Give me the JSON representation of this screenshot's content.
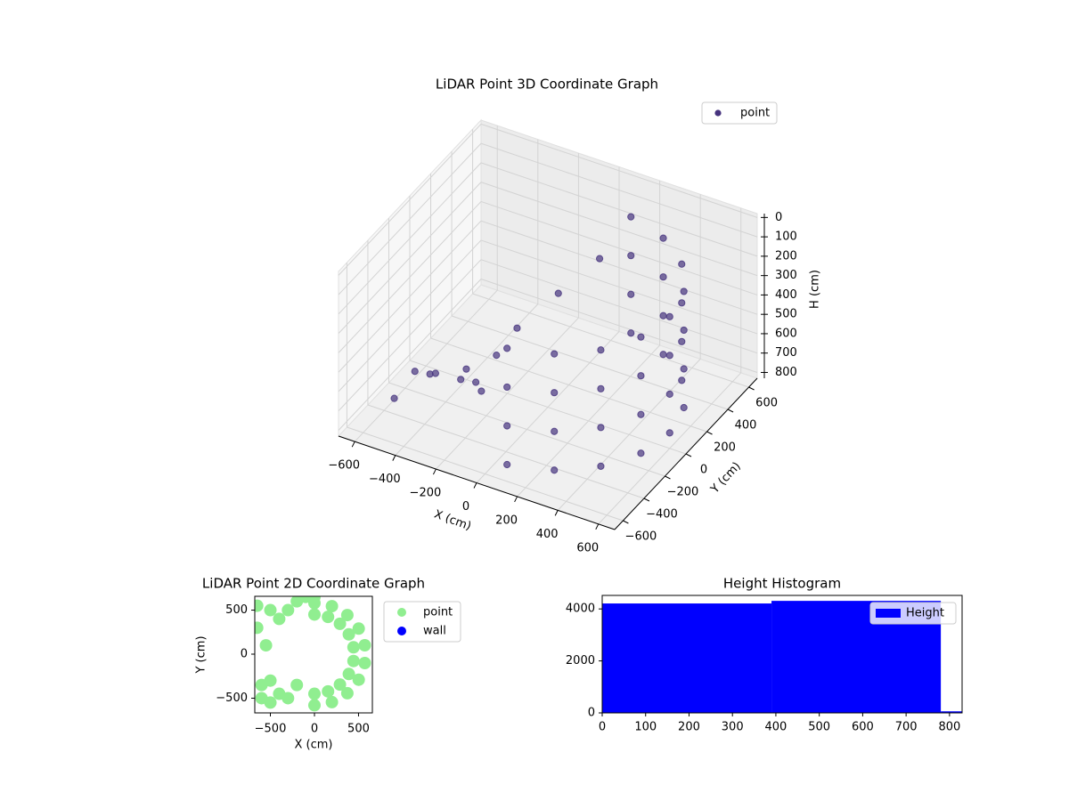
{
  "chart_data": [
    {
      "type": "scatter3d",
      "title": "LiDAR Point 3D Coordinate Graph",
      "x_label": "X (cm)",
      "y_label": "Y (cm)",
      "z_label": "H (cm)",
      "xlim": [
        -680,
        680
      ],
      "ylim": [
        -680,
        680
      ],
      "zlim": [
        830,
        -20
      ],
      "xticks": [
        {
          "value": -600,
          "label": "−600"
        },
        {
          "value": -400,
          "label": "−400"
        },
        {
          "value": -200,
          "label": "−200"
        },
        0,
        200,
        400,
        600
      ],
      "yticks": [
        {
          "value": -600,
          "label": "−600"
        },
        {
          "value": -400,
          "label": "−400"
        },
        {
          "value": -200,
          "label": "−200"
        },
        0,
        200,
        400,
        600
      ],
      "zticks": [
        0,
        100,
        200,
        300,
        400,
        500,
        600,
        700,
        800
      ],
      "grid": true,
      "legend": "upper right",
      "series": [
        {
          "name": "point",
          "color": "#46337e",
          "x": [
            104,
            300,
            460,
            564,
            600,
            564,
            460,
            300,
            104,
            104,
            300,
            460,
            564,
            600,
            564,
            460,
            300,
            104,
            104,
            300,
            460,
            564,
            600,
            564,
            460,
            300,
            104,
            104,
            300,
            460,
            564,
            600,
            564,
            460,
            300,
            104,
            -500,
            -450,
            -400,
            -300,
            -350,
            -200,
            -250,
            -550,
            -150,
            -100,
            0,
            100
          ],
          "y": [
            -591,
            -520,
            -386,
            -205,
            0,
            205,
            386,
            520,
            591,
            -591,
            -520,
            -386,
            -205,
            0,
            205,
            386,
            520,
            591,
            -591,
            -520,
            -386,
            -205,
            0,
            205,
            386,
            520,
            591,
            -591,
            -520,
            -386,
            -205,
            0,
            205,
            386,
            520,
            591,
            -300,
            -200,
            -350,
            -250,
            -100,
            -300,
            -150,
            -400,
            -200,
            -100,
            100,
            300
          ],
          "z": [
            150,
            150,
            150,
            150,
            150,
            150,
            150,
            150,
            150,
            350,
            350,
            350,
            350,
            350,
            350,
            350,
            350,
            350,
            550,
            550,
            550,
            550,
            550,
            550,
            550,
            550,
            550,
            750,
            750,
            750,
            750,
            750,
            750,
            750,
            750,
            750,
            650,
            700,
            600,
            650,
            700,
            600,
            750,
            750,
            500,
            400,
            300,
            200
          ]
        }
      ]
    },
    {
      "type": "scatter",
      "title": "LiDAR Point 2D Coordinate Graph",
      "x_label": "X (cm)",
      "y_label": "Y (cm)",
      "xlim": [
        -677,
        657
      ],
      "ylim": [
        -667,
        657
      ],
      "xticks": [
        {
          "value": -500,
          "label": "−500"
        },
        0,
        500
      ],
      "yticks": [
        {
          "value": -500,
          "label": "−500"
        },
        0,
        500
      ],
      "legend": "outside upper right",
      "series": [
        {
          "name": "point",
          "color": "#90ee90",
          "x": [
            0,
            198,
            373,
            502,
            571,
            571,
            502,
            373,
            198,
            0,
            0,
            154,
            289,
            390,
            443,
            443,
            390,
            289,
            154,
            0,
            -600,
            -500,
            -400,
            -600,
            -300,
            -200,
            -500,
            -650,
            -650,
            -400,
            -300,
            -200,
            -100,
            0,
            -500,
            -550
          ],
          "y": [
            -580,
            -545,
            -444,
            -290,
            -101,
            101,
            290,
            444,
            545,
            580,
            -450,
            -423,
            -345,
            -225,
            -78,
            78,
            225,
            345,
            423,
            450,
            -500,
            -550,
            -450,
            -350,
            -500,
            -350,
            -300,
            300,
            550,
            400,
            500,
            600,
            650,
            650,
            500,
            100
          ]
        },
        {
          "name": "wall",
          "color": "#0000ff",
          "x": [],
          "y": []
        }
      ]
    },
    {
      "type": "histogram",
      "title": "Height Histogram",
      "bins": [
        0,
        390,
        780,
        829
      ],
      "counts": [
        4210,
        4310,
        60
      ],
      "xlim": [
        0,
        829
      ],
      "ylim": [
        0,
        4520
      ],
      "xticks": [
        0,
        100,
        200,
        300,
        400,
        500,
        600,
        700,
        800
      ],
      "yticks": [
        0,
        2000,
        4000
      ],
      "legend": "upper right",
      "series_name": "Height",
      "color": "#0000ff"
    }
  ]
}
